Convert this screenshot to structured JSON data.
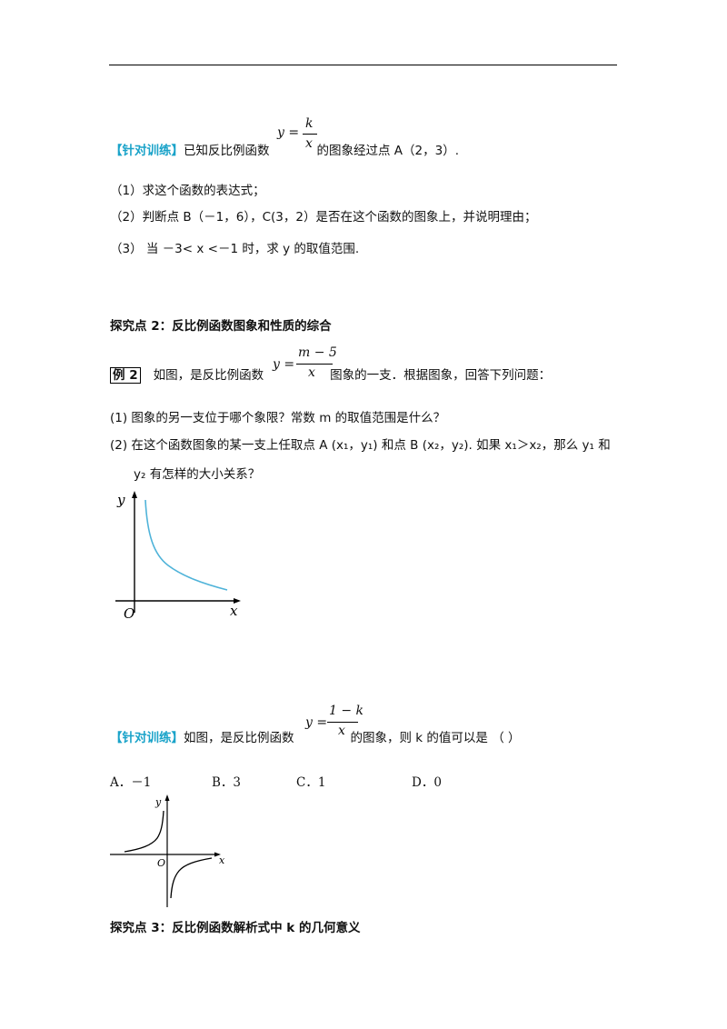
{
  "practice1": {
    "tag": "【针对训练】",
    "pre": "已知反比例函数",
    "post": "的图象经过点 A（2，3）.",
    "formula": {
      "lhs": "y =",
      "num": "k",
      "den": "x"
    },
    "q1": "（1）求这个函数的表达式；",
    "q2": "（2）判断点 B（－1，6），C(3，2）是否在这个函数的图象上，并说明理由；",
    "q3": "（3） 当 －3< x <－1 时，求 y 的取值范围."
  },
  "section2": {
    "title": "探究点 2：反比例函数图象和性质的综合"
  },
  "example2": {
    "label": "例 2",
    "pre": "如图，是反比例函数",
    "post": "图象的一支．根据图象，回答下列问题：",
    "formula": {
      "lhs": "y =",
      "num": "m − 5",
      "den": "x"
    },
    "q1": "(1) 图象的另一支位于哪个象限？常数 m 的取值范围是什么？",
    "q2": "(2) 在这个函数图象的某一支上任取点 A (x₁，y₁) 和点 B (x₂，y₂).  如果 x₁＞x₂，那么 y₁ 和",
    "q2b": "y₂ 有怎样的大小关系？"
  },
  "graph1": {
    "y_label": "y",
    "x_label": "x",
    "origin": "O",
    "curve_color": "#4fb3d9"
  },
  "practice2": {
    "tag": "【针对训练】",
    "pre": "如图，是反比例函数",
    "post": "的图象，则 k 的值可以是 （          ）",
    "formula": {
      "lhs": "y =",
      "num": "1 − k",
      "den": "x"
    },
    "options": [
      "A．－1",
      "B．3",
      "C．1",
      "D．0"
    ]
  },
  "graph2": {
    "y_label": "y",
    "x_label": "x",
    "origin": "O"
  },
  "section3": {
    "title": "探究点 3：反比例函数解析式中 k 的几何意义"
  }
}
